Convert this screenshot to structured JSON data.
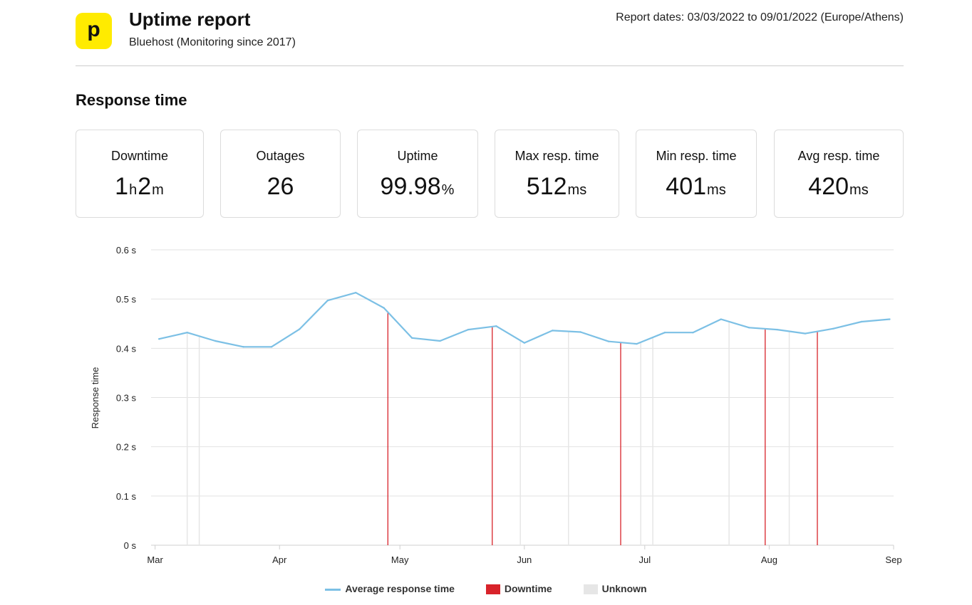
{
  "header": {
    "logo_glyph": "p",
    "title": "Uptime report",
    "subtitle": "Bluehost (Monitoring since 2017)",
    "report_dates": "Report dates: 03/03/2022 to 09/01/2022 (Europe/Athens)"
  },
  "section_title": "Response time",
  "stats": [
    {
      "label": "Downtime",
      "parts": [
        [
          "1",
          ""
        ],
        [
          "h",
          "u"
        ],
        [
          "2",
          ""
        ],
        [
          "m",
          "u"
        ]
      ]
    },
    {
      "label": "Outages",
      "parts": [
        [
          "26",
          ""
        ]
      ]
    },
    {
      "label": "Uptime",
      "parts": [
        [
          "99.98",
          ""
        ],
        [
          "%",
          "u"
        ]
      ]
    },
    {
      "label": "Max resp. time",
      "parts": [
        [
          "512",
          ""
        ],
        [
          "ms",
          "u"
        ]
      ]
    },
    {
      "label": "Min resp. time",
      "parts": [
        [
          "401",
          ""
        ],
        [
          "ms",
          "u"
        ]
      ]
    },
    {
      "label": "Avg resp. time",
      "parts": [
        [
          "420",
          ""
        ],
        [
          "ms",
          "u"
        ]
      ]
    }
  ],
  "colors": {
    "line": "#7cc0e5",
    "downtime": "#d8232a",
    "unknown": "#e6e6e6",
    "grid": "#e2e2e2",
    "logo": "#ffeb00"
  },
  "chart_data": {
    "type": "line",
    "ylabel": "Response time",
    "ylim": [
      0,
      0.6
    ],
    "y_ticks": [
      {
        "value": 0,
        "label": "0  s"
      },
      {
        "value": 0.1,
        "label": "0.1  s"
      },
      {
        "value": 0.2,
        "label": "0.2  s"
      },
      {
        "value": 0.3,
        "label": "0.3  s"
      },
      {
        "value": 0.4,
        "label": "0.4  s"
      },
      {
        "value": 0.5,
        "label": "0.5  s"
      },
      {
        "value": 0.6,
        "label": "0.6  s"
      }
    ],
    "xlim": [
      "2022-02-28",
      "2022-09-01"
    ],
    "x_ticks": [
      {
        "date": "2022-03-01",
        "label": "Mar"
      },
      {
        "date": "2022-04-01",
        "label": "Apr"
      },
      {
        "date": "2022-05-01",
        "label": "May"
      },
      {
        "date": "2022-06-01",
        "label": "Jun"
      },
      {
        "date": "2022-07-01",
        "label": "Jul"
      },
      {
        "date": "2022-08-01",
        "label": "Aug"
      },
      {
        "date": "2022-09-01",
        "label": "Sep"
      }
    ],
    "series": [
      {
        "name": "Average response time",
        "points": [
          [
            "2022-03-02",
            0.419
          ],
          [
            "2022-03-09",
            0.432
          ],
          [
            "2022-03-16",
            0.415
          ],
          [
            "2022-03-23",
            0.403
          ],
          [
            "2022-03-30",
            0.403
          ],
          [
            "2022-04-06",
            0.439
          ],
          [
            "2022-04-13",
            0.497
          ],
          [
            "2022-04-20",
            0.513
          ],
          [
            "2022-04-27",
            0.482
          ],
          [
            "2022-05-04",
            0.421
          ],
          [
            "2022-05-11",
            0.415
          ],
          [
            "2022-05-18",
            0.438
          ],
          [
            "2022-05-25",
            0.445
          ],
          [
            "2022-06-01",
            0.411
          ],
          [
            "2022-06-08",
            0.436
          ],
          [
            "2022-06-15",
            0.433
          ],
          [
            "2022-06-22",
            0.414
          ],
          [
            "2022-06-29",
            0.409
          ],
          [
            "2022-07-06",
            0.432
          ],
          [
            "2022-07-13",
            0.432
          ],
          [
            "2022-07-20",
            0.459
          ],
          [
            "2022-07-27",
            0.442
          ],
          [
            "2022-08-03",
            0.438
          ],
          [
            "2022-08-10",
            0.43
          ],
          [
            "2022-08-17",
            0.44
          ],
          [
            "2022-08-24",
            0.454
          ],
          [
            "2022-08-31",
            0.459
          ]
        ]
      }
    ],
    "downtime_markers": [
      "2022-04-28",
      "2022-05-24",
      "2022-06-25",
      "2022-07-31",
      "2022-08-13"
    ],
    "unknown_markers": [
      "2022-03-09",
      "2022-03-12",
      "2022-05-31",
      "2022-06-12",
      "2022-06-30",
      "2022-07-03",
      "2022-07-22",
      "2022-08-06"
    ],
    "legend": [
      {
        "label": "Average response time",
        "kind": "line"
      },
      {
        "label": "Downtime",
        "kind": "downtime"
      },
      {
        "label": "Unknown",
        "kind": "unknown"
      }
    ],
    "grid": true,
    "legend_position": "bottom-center"
  }
}
